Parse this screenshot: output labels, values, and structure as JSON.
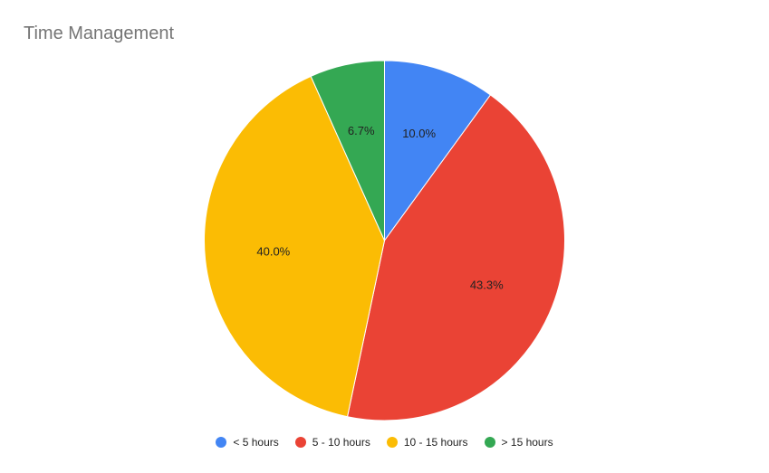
{
  "chart_data": {
    "type": "pie",
    "title": "Time Management",
    "categories": [
      "< 5 hours",
      "5 - 10 hours",
      "10 - 15 hours",
      "> 15 hours"
    ],
    "values": [
      10.0,
      43.3,
      40.0,
      6.7
    ],
    "value_labels": [
      "10.0%",
      "43.3%",
      "40.0%",
      "6.7%"
    ],
    "colors": [
      "#4285F4",
      "#EA4335",
      "#FBBC04",
      "#34A853"
    ],
    "legend_position": "bottom"
  }
}
